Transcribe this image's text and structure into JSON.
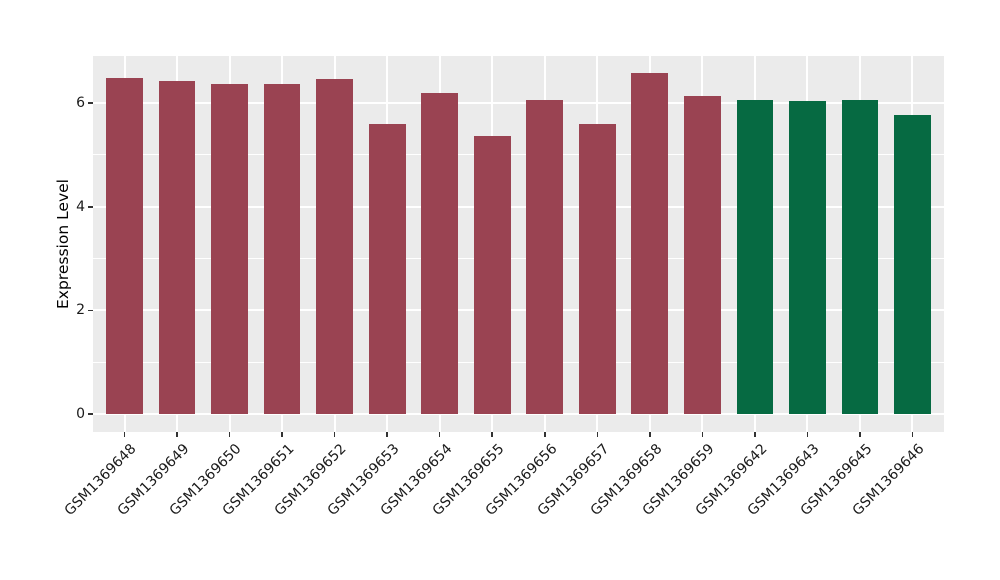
{
  "colors": {
    "bar_red": "#9A4352",
    "bar_green": "#066A42",
    "panel_bg": "#EBEBEB",
    "grid": "#FFFFFF",
    "tick_mark": "#333333",
    "tick_text": "#1A1A1A",
    "axis_title_text": "#000000"
  },
  "chart_data": {
    "type": "bar",
    "title": "",
    "xlabel": "",
    "ylabel": "Expression Level",
    "categories": [
      "GSM1369648",
      "GSM1369649",
      "GSM1369650",
      "GSM1369651",
      "GSM1369652",
      "GSM1369653",
      "GSM1369654",
      "GSM1369655",
      "GSM1369656",
      "GSM1369657",
      "GSM1369658",
      "GSM1369659",
      "GSM1369642",
      "GSM1369643",
      "GSM1369645",
      "GSM1369646"
    ],
    "values": [
      6.49,
      6.42,
      6.36,
      6.36,
      6.47,
      5.6,
      6.2,
      5.36,
      6.07,
      5.6,
      6.58,
      6.13,
      6.07,
      6.05,
      6.06,
      5.78
    ],
    "bar_colors": [
      "#9A4352",
      "#9A4352",
      "#9A4352",
      "#9A4352",
      "#9A4352",
      "#9A4352",
      "#9A4352",
      "#9A4352",
      "#9A4352",
      "#9A4352",
      "#9A4352",
      "#9A4352",
      "#066A42",
      "#066A42",
      "#066A42",
      "#066A42"
    ],
    "series": [
      {
        "name": "red-group",
        "color": "#9A4352",
        "count": 12
      },
      {
        "name": "green-group",
        "color": "#066A42",
        "count": 4
      }
    ],
    "y_ticks": [
      0,
      2,
      4,
      6
    ],
    "y_minor_ticks": [
      1,
      3,
      5
    ],
    "ylim": [
      0,
      6.91
    ],
    "bar_width_fraction": 0.7,
    "grid": "on",
    "legend": "none"
  }
}
